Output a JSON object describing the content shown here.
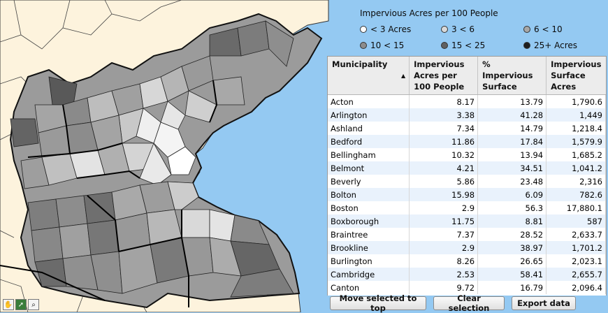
{
  "legend": {
    "title": "Impervious Acres per 100 People",
    "items": [
      {
        "label": "< 3 Acres",
        "color": "#ffffff"
      },
      {
        "label": "3 < 6",
        "color": "#d9d9d9"
      },
      {
        "label": "6 < 10",
        "color": "#a8a8a8"
      },
      {
        "label": "10 < 15",
        "color": "#8c8c8c"
      },
      {
        "label": "15 < 25",
        "color": "#606060"
      },
      {
        "label": "25+ Acres",
        "color": "#1f1f1f"
      }
    ]
  },
  "table": {
    "headers": [
      "Municipality",
      "Impervious Acres per 100 People",
      "% Impervious Surface",
      "Impervious Surface Acres"
    ],
    "rows": [
      [
        "Acton",
        "8.17",
        "13.79",
        "1,790.6"
      ],
      [
        "Arlington",
        "3.38",
        "41.28",
        "1,449"
      ],
      [
        "Ashland",
        "7.34",
        "14.79",
        "1,218.4"
      ],
      [
        "Bedford",
        "11.86",
        "17.84",
        "1,579.9"
      ],
      [
        "Bellingham",
        "10.32",
        "13.94",
        "1,685.2"
      ],
      [
        "Belmont",
        "4.21",
        "34.51",
        "1,041.2"
      ],
      [
        "Beverly",
        "5.86",
        "23.48",
        "2,316"
      ],
      [
        "Bolton",
        "15.98",
        "6.09",
        "782.6"
      ],
      [
        "Boston",
        "2.9",
        "56.3",
        "17,880.1"
      ],
      [
        "Boxborough",
        "11.75",
        "8.81",
        "587"
      ],
      [
        "Braintree",
        "7.37",
        "28.52",
        "2,633.7"
      ],
      [
        "Brookline",
        "2.9",
        "38.97",
        "1,701.2"
      ],
      [
        "Burlington",
        "8.26",
        "26.65",
        "2,023.1"
      ],
      [
        "Cambridge",
        "2.53",
        "58.41",
        "2,655.7"
      ],
      [
        "Canton",
        "9.72",
        "16.79",
        "2,096.4"
      ]
    ]
  },
  "buttons": {
    "move": "Move selected to top",
    "clear": "Clear selection",
    "export": "Export data"
  },
  "colors": {
    "water": "#94c9f2",
    "land": "#fdf3dd"
  }
}
